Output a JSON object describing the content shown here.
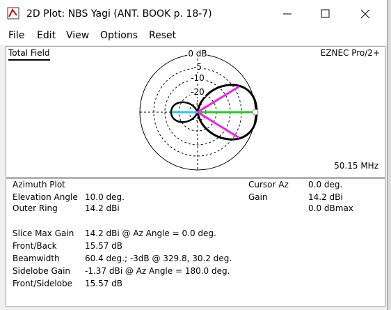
{
  "window": {
    "title": "2D Plot: NBS Yagi (ANT. BOOK p. 18-7)"
  },
  "menu": [
    "File",
    "Edit",
    "View",
    "Options",
    "Reset"
  ],
  "plot": {
    "field_label": "Total Field",
    "program": "EZNEC Pro/2+",
    "frequency": "50.15 MHz",
    "ring_labels": [
      "0 dB",
      "-5",
      "-10",
      "-20"
    ]
  },
  "info": {
    "heading": "Azimuth Plot",
    "settings": [
      {
        "label": "Elevation Angle",
        "value": "10.0 deg."
      },
      {
        "label": "Outer Ring",
        "value": "14.2 dBi"
      }
    ],
    "results": [
      {
        "label": "Slice Max Gain",
        "value": "14.2 dBi @ Az Angle = 0.0 deg."
      },
      {
        "label": "Front/Back",
        "value": "15.57 dB"
      },
      {
        "label": "Beamwidth",
        "value": "60.4 deg.; -3dB @ 329.8, 30.2 deg."
      },
      {
        "label": "Sidelobe Gain",
        "value": "-1.37 dBi @ Az Angle = 180.0 deg."
      },
      {
        "label": "Front/Sidelobe",
        "value": "15.57 dB"
      }
    ],
    "cursor": [
      {
        "label": "Cursor Az",
        "value": "0.0 deg."
      },
      {
        "label": "Gain",
        "value": "14.2 dBi"
      }
    ],
    "cursor_extra": "0.0 dBmax"
  }
}
